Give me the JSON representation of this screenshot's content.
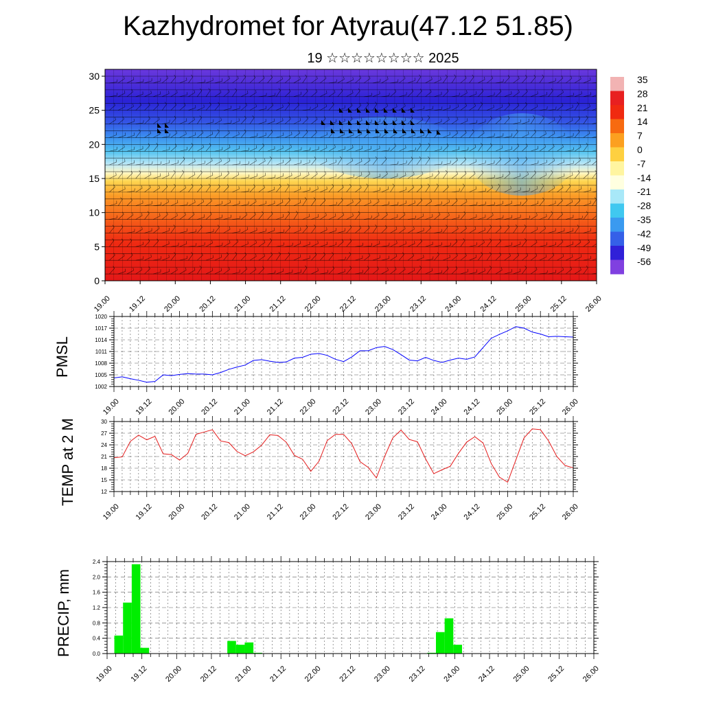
{
  "title": "Kazhydromet for Atyrau(47.12 51.85)",
  "subtitle": "19 ☆☆☆☆☆☆☆☆ 2025",
  "time_ticks": [
    "19.00",
    "19.12",
    "20.00",
    "20.12",
    "21.00",
    "21.12",
    "22.00",
    "22.12",
    "23.00",
    "23.12",
    "24.00",
    "24.12",
    "25.00",
    "25.12",
    "26.00"
  ],
  "chart_data": [
    {
      "type": "heatmap",
      "description_role": "cross-section of temperature with wind barbs",
      "x_ticks": [
        "19.00",
        "19.12",
        "20.00",
        "20.12",
        "21.00",
        "21.12",
        "22.00",
        "22.12",
        "23.00",
        "23.12",
        "24.00",
        "24.12",
        "25.00",
        "25.12",
        "26.00"
      ],
      "y_ticks": [
        "0",
        "5",
        "10",
        "15",
        "20",
        "25",
        "30"
      ],
      "ylim": [
        0,
        30
      ],
      "colorbar_labels": [
        "35",
        "28",
        "21",
        "14",
        "7",
        "0",
        "-7",
        "-14",
        "-21",
        "-28",
        "-35",
        "-42",
        "-49",
        "-56"
      ],
      "colorbar_colors": [
        "#f2b3b3",
        "#e82020",
        "#f02a10",
        "#f76a10",
        "#fca020",
        "#fed040",
        "#fff5a0",
        "#ffffe0",
        "#a8e8f8",
        "#40c8f0",
        "#3a9af0",
        "#3560e8",
        "#3020d8",
        "#8040e0"
      ]
    },
    {
      "type": "line",
      "ylabel": "PMSL",
      "ylim": [
        1002,
        1020
      ],
      "y_ticks": [
        "1002",
        "1005",
        "1008",
        "1011",
        "1014",
        "1017",
        "1020"
      ],
      "x_ticks": [
        "19.00",
        "19.12",
        "20.00",
        "20.12",
        "21.00",
        "21.12",
        "22.00",
        "22.12",
        "23.00",
        "23.12",
        "24.00",
        "24.12",
        "25.00",
        "25.12",
        "26.00"
      ],
      "color": "#0000ff",
      "x": [
        0,
        3,
        6,
        9,
        12,
        15,
        18,
        21,
        24,
        27,
        30,
        33,
        36,
        39,
        42,
        45,
        48,
        51,
        54,
        57,
        60,
        63,
        66,
        69,
        72,
        75,
        78,
        81,
        84,
        87,
        90,
        93,
        96,
        99,
        102,
        105,
        108,
        111,
        114,
        117,
        120,
        123,
        126,
        129,
        132,
        135,
        138,
        141,
        144,
        147,
        150,
        153,
        156,
        159,
        162,
        165,
        168
      ],
      "values": [
        1004.2,
        1004.5,
        1004.0,
        1003.6,
        1003.1,
        1003.3,
        1005.0,
        1004.8,
        1005.1,
        1005.3,
        1005.2,
        1005.2,
        1005.0,
        1005.6,
        1006.4,
        1007.0,
        1007.5,
        1008.7,
        1008.9,
        1008.5,
        1008.2,
        1008.3,
        1009.3,
        1009.5,
        1010.3,
        1010.5,
        1010.0,
        1009.0,
        1008.4,
        1009.6,
        1011.2,
        1011.2,
        1012.0,
        1012.3,
        1011.5,
        1010.2,
        1008.8,
        1008.6,
        1009.5,
        1008.7,
        1008.2,
        1008.8,
        1009.3,
        1009.0,
        1009.6,
        1012.0,
        1014.4,
        1015.4,
        1016.3,
        1017.4,
        1017.0,
        1016.0,
        1015.5,
        1014.8,
        1014.9,
        1014.8,
        1014.7
      ]
    },
    {
      "type": "line",
      "ylabel": "TEMP at 2 M",
      "ylim": [
        12,
        30
      ],
      "y_ticks": [
        "12",
        "15",
        "18",
        "21",
        "24",
        "27",
        "30"
      ],
      "x_ticks": [
        "19.00",
        "19.12",
        "20.00",
        "20.12",
        "21.00",
        "21.12",
        "22.00",
        "22.12",
        "23.00",
        "23.12",
        "24.00",
        "24.12",
        "25.00",
        "25.12",
        "26.00"
      ],
      "color": "#e41a1a",
      "x": [
        0,
        3,
        6,
        9,
        12,
        15,
        18,
        21,
        24,
        27,
        30,
        33,
        36,
        39,
        42,
        45,
        48,
        51,
        54,
        57,
        60,
        63,
        66,
        69,
        72,
        75,
        78,
        81,
        84,
        87,
        90,
        93,
        96,
        99,
        102,
        105,
        108,
        111,
        114,
        117,
        120,
        123,
        126,
        129,
        132,
        135,
        138,
        141,
        144,
        147,
        150,
        153,
        156,
        159,
        162,
        165,
        168
      ],
      "values": [
        20.7,
        20.9,
        24.9,
        26.5,
        25.3,
        26.2,
        21.7,
        21.5,
        20.1,
        21.8,
        26.7,
        27.3,
        27.9,
        25.0,
        24.6,
        22.3,
        21.2,
        22.2,
        23.9,
        26.6,
        26.4,
        24.7,
        21.3,
        20.3,
        17.2,
        19.8,
        25.1,
        26.7,
        26.7,
        24.3,
        19.7,
        18.2,
        15.5,
        21.0,
        25.8,
        27.8,
        25.4,
        24.8,
        20.4,
        16.6,
        17.6,
        18.5,
        21.8,
        24.7,
        26.1,
        24.5,
        19.2,
        15.7,
        14.4,
        20.1,
        25.8,
        28.1,
        27.9,
        25.0,
        21.0,
        18.7,
        18.1
      ]
    },
    {
      "type": "bar",
      "ylabel": "PRECIP, mm",
      "ylim": [
        0,
        2.4
      ],
      "y_ticks": [
        "0.0",
        "0.4",
        "0.8",
        "1.2",
        "1.6",
        "2.0",
        "2.4"
      ],
      "x_ticks": [
        "19.00",
        "19.12",
        "20.00",
        "20.12",
        "21.00",
        "21.12",
        "22.00",
        "22.12",
        "23.00",
        "23.12",
        "24.00",
        "24.12",
        "25.00",
        "25.12",
        "26.00"
      ],
      "color": "#00ee00",
      "x": [
        4,
        7,
        10,
        13,
        43,
        46,
        49,
        52,
        112,
        115,
        118,
        121
      ],
      "values": [
        0.47,
        1.33,
        2.33,
        0.15,
        0.33,
        0.23,
        0.29,
        0.02,
        0.02,
        0.56,
        0.92,
        0.23
      ]
    }
  ]
}
